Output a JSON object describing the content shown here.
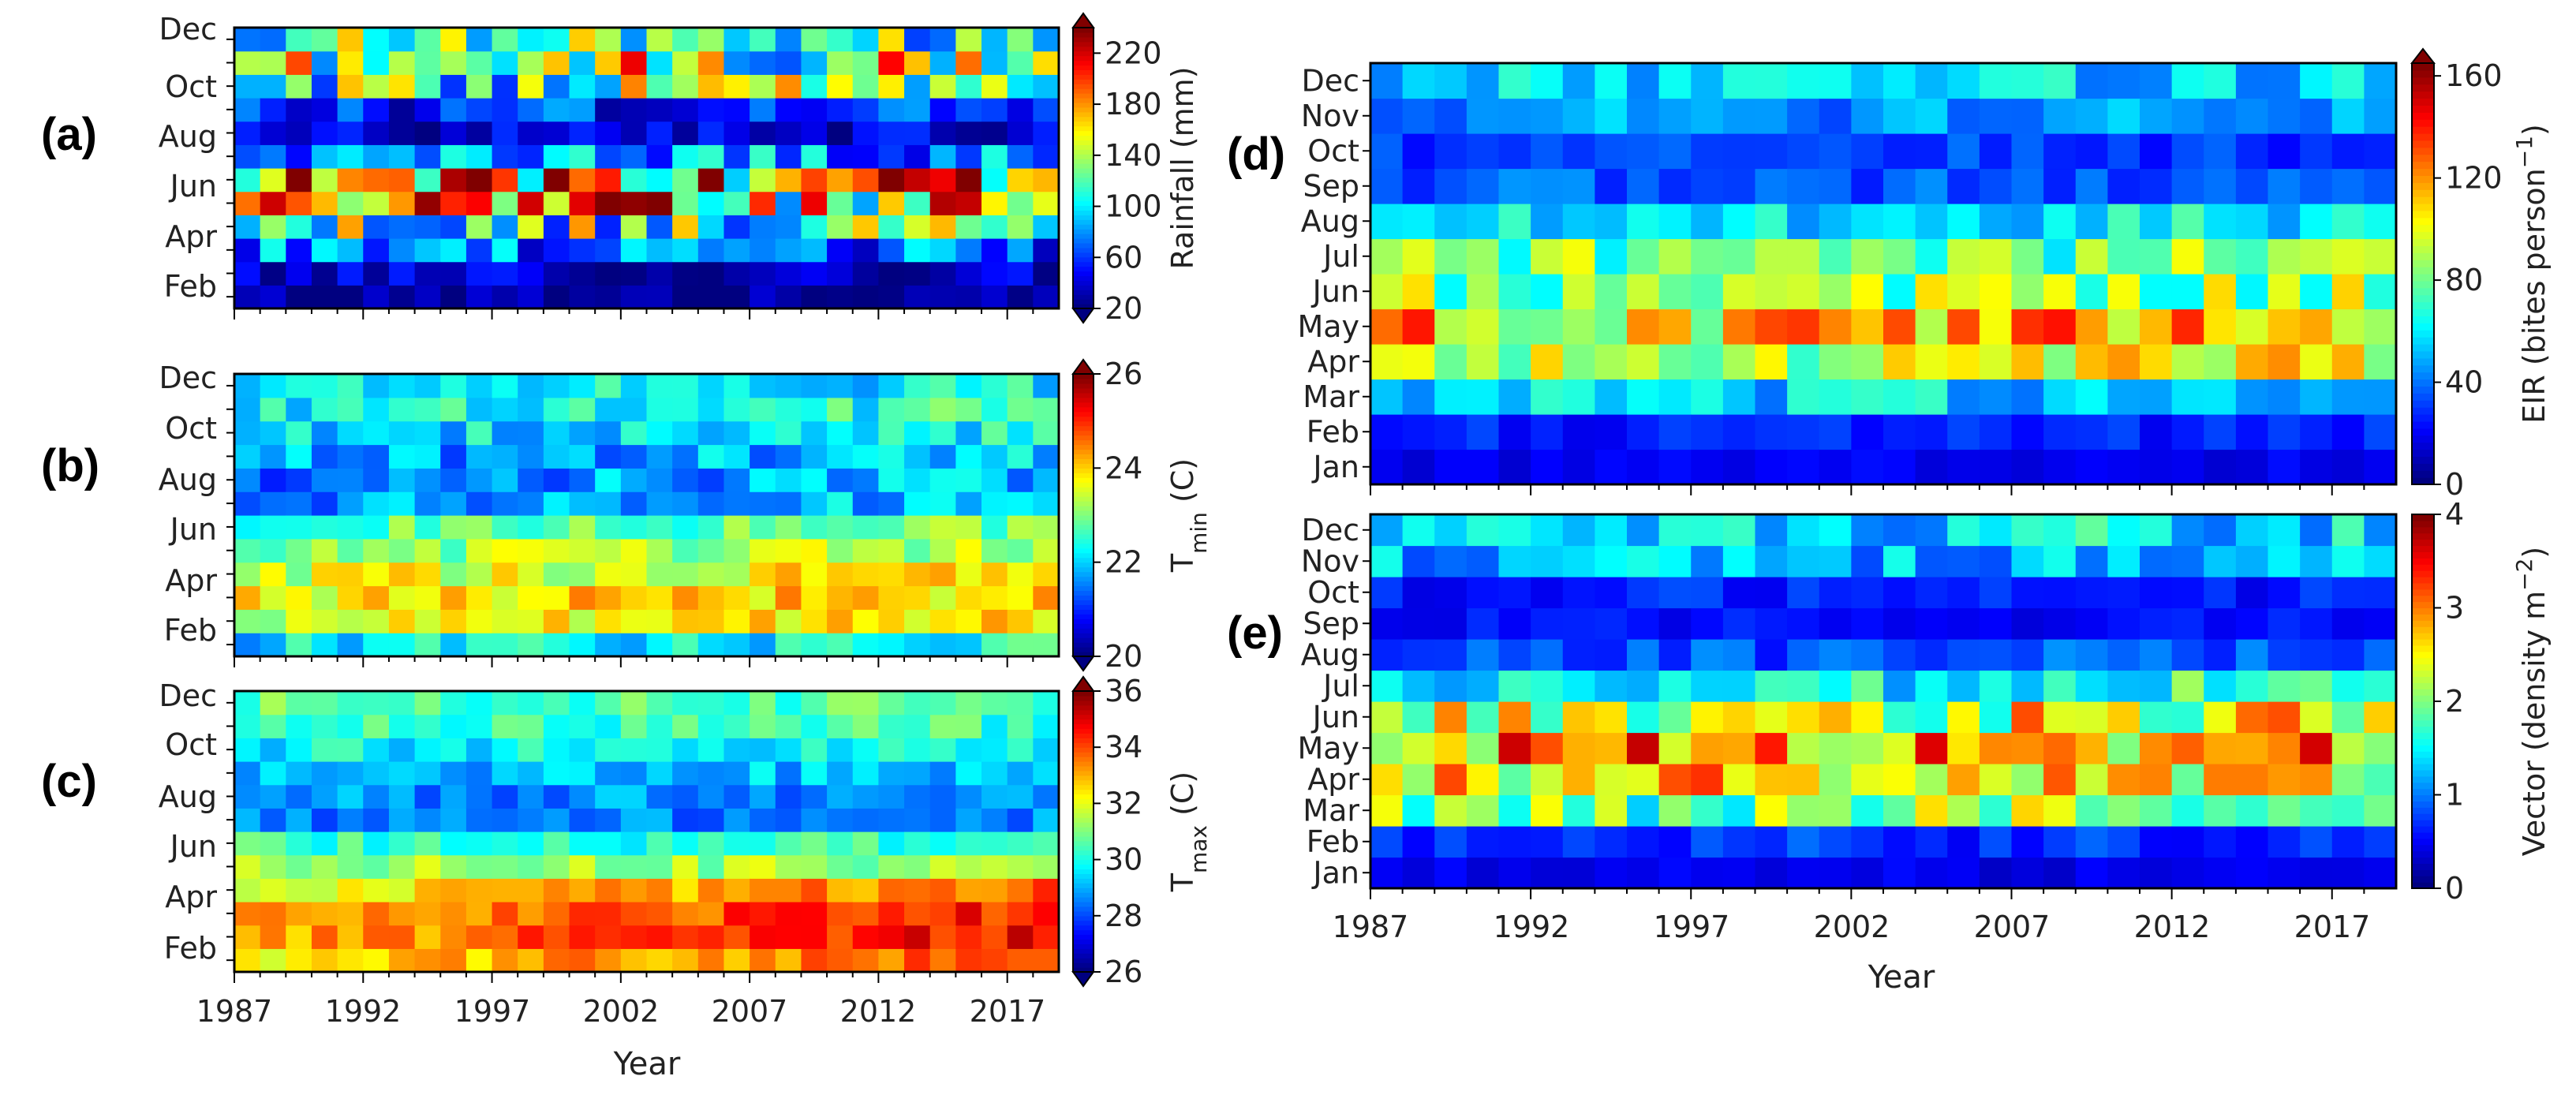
{
  "chart_data": [
    {
      "id": "a",
      "type": "heatmap",
      "panel_label": "(a)",
      "xlabel": "",
      "x_ticks": [
        "1987",
        "1992",
        "1997",
        "2002",
        "2007",
        "2012",
        "2017"
      ],
      "x_ticks_shown": false,
      "year_start": 1987,
      "year_end": 2018,
      "y_ticks": [
        "Feb",
        "Apr",
        "Jun",
        "Aug",
        "Oct",
        "Dec"
      ],
      "n_months": 12,
      "colorbar": {
        "label": "Rainfall (mm)",
        "label_sub": "",
        "label_rest": "",
        "range": [
          20,
          240
        ],
        "ticks": [
          "20",
          "60",
          "100",
          "140",
          "180",
          "220"
        ],
        "tick_values": [
          20,
          60,
          100,
          140,
          180,
          220
        ],
        "extend": "both"
      },
      "pattern": "rainfall"
    },
    {
      "id": "b",
      "type": "heatmap",
      "panel_label": "(b)",
      "xlabel": "",
      "x_ticks": [
        "1987",
        "1992",
        "1997",
        "2002",
        "2007",
        "2012",
        "2017"
      ],
      "x_ticks_shown": false,
      "year_start": 1987,
      "year_end": 2018,
      "y_ticks": [
        "Feb",
        "Apr",
        "Jun",
        "Aug",
        "Oct",
        "Dec"
      ],
      "n_months": 12,
      "colorbar": {
        "label": "T",
        "label_sub": "min",
        "label_rest": " (C)",
        "range": [
          20,
          26
        ],
        "ticks": [
          "20",
          "22",
          "24",
          "26"
        ],
        "tick_values": [
          20,
          22,
          24,
          26
        ],
        "extend": "both"
      },
      "pattern": "tmin"
    },
    {
      "id": "c",
      "type": "heatmap",
      "panel_label": "(c)",
      "xlabel": "Year",
      "x_ticks": [
        "1987",
        "1992",
        "1997",
        "2002",
        "2007",
        "2012",
        "2017"
      ],
      "x_ticks_shown": true,
      "year_start": 1987,
      "year_end": 2018,
      "y_ticks": [
        "Feb",
        "Apr",
        "Jun",
        "Aug",
        "Oct",
        "Dec"
      ],
      "n_months": 12,
      "colorbar": {
        "label": "T",
        "label_sub": "max",
        "label_rest": " (C)",
        "range": [
          26,
          36
        ],
        "ticks": [
          "26",
          "28",
          "30",
          "32",
          "34",
          "36"
        ],
        "tick_values": [
          26,
          28,
          30,
          32,
          34,
          36
        ],
        "extend": "both"
      },
      "pattern": "tmax"
    },
    {
      "id": "d",
      "type": "heatmap",
      "panel_label": "(d)",
      "xlabel": "",
      "x_ticks": [
        "1987",
        "1992",
        "1997",
        "2002",
        "2007",
        "2012",
        "2017"
      ],
      "x_ticks_shown": false,
      "year_start": 1987,
      "year_end": 2018,
      "y_ticks": [
        "Jan",
        "Feb",
        "Mar",
        "Apr",
        "May",
        "Jun",
        "Jul",
        "Aug",
        "Sep",
        "Oct",
        "Nov",
        "Dec"
      ],
      "n_months": 12,
      "colorbar": {
        "label": "EIR (bites person",
        "label_sub": "",
        "label_sup": "−1",
        "label_rest": ")",
        "range": [
          0,
          165
        ],
        "ticks": [
          "0",
          "40",
          "80",
          "120",
          "160"
        ],
        "tick_values": [
          0,
          40,
          80,
          120,
          160
        ],
        "extend": "max"
      },
      "pattern": "eir"
    },
    {
      "id": "e",
      "type": "heatmap",
      "panel_label": "(e)",
      "xlabel": "Year",
      "x_ticks": [
        "1987",
        "1992",
        "1997",
        "2002",
        "2007",
        "2012",
        "2017"
      ],
      "x_ticks_shown": true,
      "year_start": 1987,
      "year_end": 2018,
      "y_ticks": [
        "Jan",
        "Feb",
        "Mar",
        "Apr",
        "May",
        "Jun",
        "Jul",
        "Aug",
        "Sep",
        "Oct",
        "Nov",
        "Dec"
      ],
      "n_months": 12,
      "colorbar": {
        "label": "Vector (density m",
        "label_sub": "",
        "label_sup": "−2",
        "label_rest": ")",
        "range": [
          0,
          4
        ],
        "ticks": [
          "0",
          "1",
          "2",
          "3",
          "4"
        ],
        "tick_values": [
          0,
          1,
          2,
          3,
          4
        ],
        "extend": "none"
      },
      "pattern": "vector"
    }
  ]
}
